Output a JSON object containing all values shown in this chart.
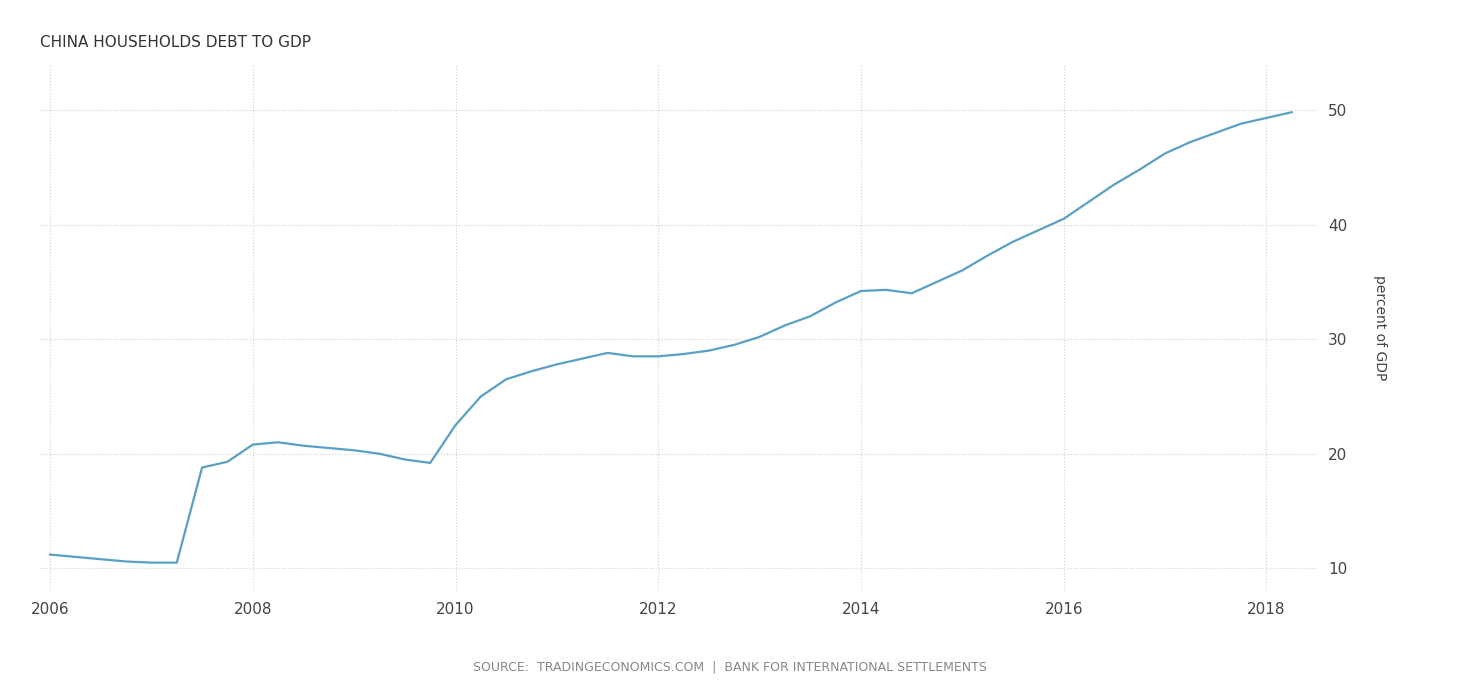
{
  "title": "CHINA HOUSEHOLDS DEBT TO GDP",
  "ylabel": "percent of GDP",
  "source_text": "SOURCE:  TRADINGECONOMICS.COM  |  BANK FOR INTERNATIONAL SETTLEMENTS",
  "line_color": "#5a9fc4",
  "background_color": "#ffffff",
  "grid_color": "#cccccc",
  "title_color": "#333333",
  "source_color": "#888888",
  "xlim": [
    2005.9,
    2018.5
  ],
  "ylim": [
    8,
    54
  ],
  "yticks": [
    10,
    20,
    30,
    40,
    50
  ],
  "xticks": [
    2006,
    2008,
    2010,
    2012,
    2014,
    2016,
    2018
  ],
  "data": [
    [
      2006.0,
      11.2
    ],
    [
      2006.25,
      11.0
    ],
    [
      2006.5,
      10.8
    ],
    [
      2006.75,
      10.6
    ],
    [
      2007.0,
      10.5
    ],
    [
      2007.25,
      10.5
    ],
    [
      2007.5,
      18.8
    ],
    [
      2007.75,
      19.3
    ],
    [
      2008.0,
      20.8
    ],
    [
      2008.25,
      21.0
    ],
    [
      2008.5,
      20.7
    ],
    [
      2008.75,
      20.5
    ],
    [
      2009.0,
      20.3
    ],
    [
      2009.25,
      20.0
    ],
    [
      2009.5,
      19.5
    ],
    [
      2009.75,
      19.2
    ],
    [
      2010.0,
      22.5
    ],
    [
      2010.25,
      25.0
    ],
    [
      2010.5,
      26.5
    ],
    [
      2010.75,
      27.2
    ],
    [
      2011.0,
      27.8
    ],
    [
      2011.25,
      28.3
    ],
    [
      2011.5,
      28.8
    ],
    [
      2011.75,
      28.5
    ],
    [
      2012.0,
      28.5
    ],
    [
      2012.25,
      28.7
    ],
    [
      2012.5,
      29.0
    ],
    [
      2012.75,
      29.5
    ],
    [
      2013.0,
      30.2
    ],
    [
      2013.25,
      31.2
    ],
    [
      2013.5,
      32.0
    ],
    [
      2013.75,
      33.2
    ],
    [
      2014.0,
      34.2
    ],
    [
      2014.25,
      34.3
    ],
    [
      2014.5,
      34.0
    ],
    [
      2014.75,
      35.0
    ],
    [
      2015.0,
      36.0
    ],
    [
      2015.25,
      37.3
    ],
    [
      2015.5,
      38.5
    ],
    [
      2015.75,
      39.5
    ],
    [
      2016.0,
      40.5
    ],
    [
      2016.25,
      42.0
    ],
    [
      2016.5,
      43.5
    ],
    [
      2016.75,
      44.8
    ],
    [
      2017.0,
      46.2
    ],
    [
      2017.25,
      47.2
    ],
    [
      2017.5,
      48.0
    ],
    [
      2017.75,
      48.8
    ],
    [
      2018.0,
      49.3
    ],
    [
      2018.25,
      49.8
    ]
  ]
}
